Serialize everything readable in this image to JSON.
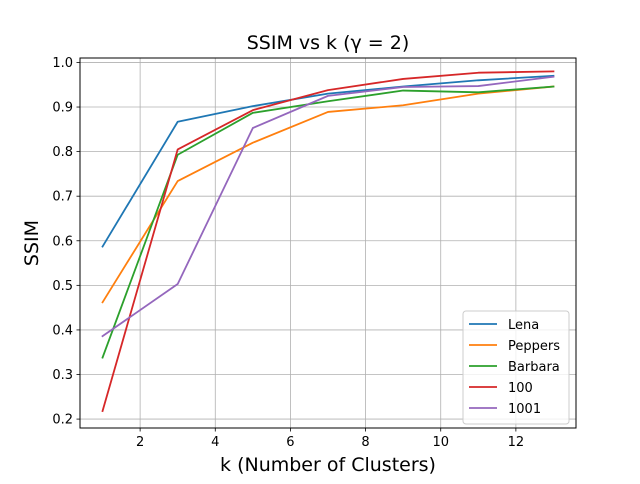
{
  "chart_data": {
    "type": "line",
    "title": "SSIM vs k (γ = 2)",
    "xlabel": "k (Number of Clusters)",
    "ylabel": "SSIM",
    "xlim": [
      0.4,
      13.6
    ],
    "ylim": [
      0.18,
      1.01
    ],
    "x_ticks": [
      2,
      4,
      6,
      8,
      10,
      12
    ],
    "y_ticks": [
      0.2,
      0.3,
      0.4,
      0.5,
      0.6,
      0.7,
      0.8,
      0.9,
      1.0
    ],
    "y_tick_labels": [
      "0.2",
      "0.3",
      "0.4",
      "0.5",
      "0.6",
      "0.7",
      "0.8",
      "0.9",
      "1.0"
    ],
    "grid": true,
    "legend_position": "bottom-right",
    "x": [
      1,
      3,
      5,
      7,
      9,
      11,
      13
    ],
    "series": [
      {
        "name": "Lena",
        "color": "#1f77b4",
        "values": [
          0.587,
          0.867,
          0.902,
          0.93,
          0.946,
          0.96,
          0.97
        ]
      },
      {
        "name": "Peppers",
        "color": "#ff7f0e",
        "values": [
          0.462,
          0.734,
          0.82,
          0.889,
          0.904,
          0.93,
          0.946
        ]
      },
      {
        "name": "Barbara",
        "color": "#2ca02c",
        "values": [
          0.338,
          0.793,
          0.887,
          0.913,
          0.937,
          0.933,
          0.946
        ]
      },
      {
        "name": "100",
        "color": "#d62728",
        "values": [
          0.218,
          0.805,
          0.893,
          0.938,
          0.963,
          0.977,
          0.98
        ]
      },
      {
        "name": "1001",
        "color": "#9467bd",
        "values": [
          0.386,
          0.503,
          0.853,
          0.925,
          0.945,
          0.947,
          0.968
        ]
      }
    ]
  }
}
